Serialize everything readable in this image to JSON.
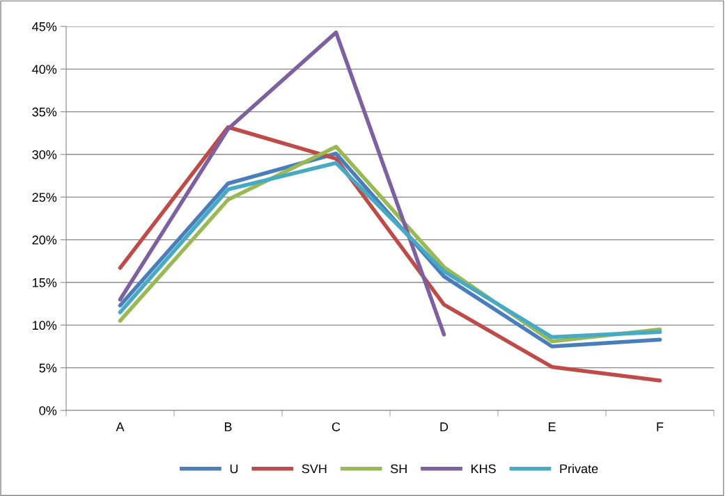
{
  "chart_data": {
    "type": "line",
    "categories": [
      "A",
      "B",
      "C",
      "D",
      "E",
      "F"
    ],
    "series": [
      {
        "name": "U",
        "color": "#4a7ebb",
        "values": [
          12.3,
          26.6,
          30.1,
          15.7,
          7.5,
          8.3
        ]
      },
      {
        "name": "SVH",
        "color": "#be4b48",
        "values": [
          16.7,
          33.2,
          29.5,
          12.4,
          5.1,
          3.5
        ]
      },
      {
        "name": "SH",
        "color": "#98b954",
        "values": [
          10.5,
          24.7,
          30.9,
          16.8,
          8.1,
          9.5
        ]
      },
      {
        "name": "KHS",
        "color": "#7d60a0",
        "values": [
          13.0,
          33.0,
          44.3,
          8.9,
          null,
          null
        ]
      },
      {
        "name": "Private",
        "color": "#46aac5",
        "values": [
          11.5,
          25.9,
          29.0,
          16.3,
          8.6,
          9.2
        ]
      }
    ],
    "ylim": [
      0,
      45
    ],
    "yticks": [
      {
        "value": 0,
        "label": "0%"
      },
      {
        "value": 5,
        "label": "5%"
      },
      {
        "value": 10,
        "label": "10%"
      },
      {
        "value": 15,
        "label": "15%"
      },
      {
        "value": 20,
        "label": "20%"
      },
      {
        "value": 25,
        "label": "25%"
      },
      {
        "value": 30,
        "label": "30%"
      },
      {
        "value": 35,
        "label": "35%"
      },
      {
        "value": 40,
        "label": "40%"
      },
      {
        "value": 45,
        "label": "45%"
      }
    ],
    "grid": "y",
    "legend": "bottom",
    "marker": "none",
    "line_style": "solid"
  }
}
